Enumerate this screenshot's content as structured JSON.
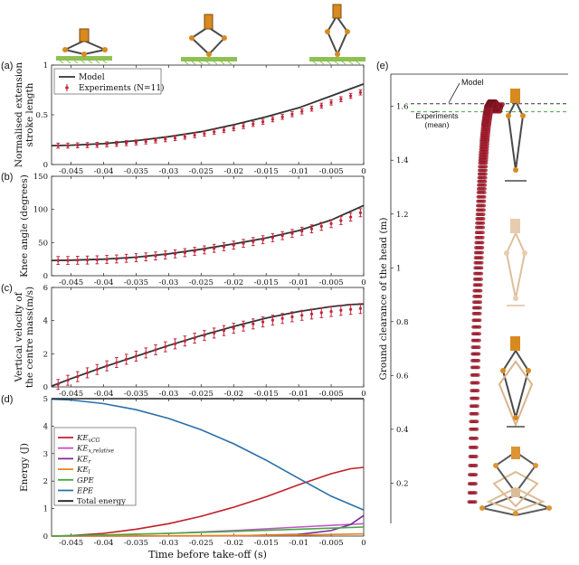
{
  "colors": {
    "model": "#333333",
    "experiment": "#c0263a",
    "ke_vcg": "#c0202a",
    "ke_x_relative": "#c655c6",
    "ke_r": "#7a2a9a",
    "ke_l": "#e8841a",
    "gpe": "#45a93f",
    "epe": "#2a6faa",
    "total": "#222222",
    "leg_body": "#4a4a4a",
    "leg_joint": "#d88a1f",
    "ground": "#8dc152",
    "ghost": "#d9b58a"
  },
  "chart_data": [
    {
      "id": "a",
      "type": "line",
      "panel_label": "(a)",
      "ylabel_lines": [
        "Normalised extension",
        "stroke length"
      ],
      "xlim": [
        -0.048,
        0
      ],
      "ylim": [
        0,
        1
      ],
      "xticks": [
        -0.045,
        -0.04,
        -0.035,
        -0.03,
        -0.025,
        -0.02,
        -0.015,
        -0.01,
        -0.005,
        0
      ],
      "xtick_labels": [
        "-0.045",
        "-0.04",
        "-0.035",
        "-0.03",
        "-0.025",
        "-0.02",
        "-0.015",
        "-0.01",
        "-0.005",
        "0"
      ],
      "yticks": [
        0,
        0.5,
        1
      ],
      "ytick_labels": [
        "0",
        "0.5",
        "1"
      ],
      "grid": false,
      "legend": {
        "placement": "top-left",
        "entries": [
          "Model",
          "Experiments (N=11)"
        ]
      },
      "series": [
        {
          "name": "Model",
          "style": "line",
          "x": [
            -0.048,
            -0.045,
            -0.04,
            -0.035,
            -0.03,
            -0.025,
            -0.02,
            -0.015,
            -0.01,
            -0.005,
            0
          ],
          "y": [
            0.19,
            0.195,
            0.21,
            0.24,
            0.28,
            0.33,
            0.4,
            0.48,
            0.57,
            0.69,
            0.81
          ]
        },
        {
          "name": "Experiments (N=11)",
          "style": "errorbar",
          "x": [
            -0.047,
            -0.0455,
            -0.044,
            -0.0425,
            -0.041,
            -0.0395,
            -0.038,
            -0.0365,
            -0.035,
            -0.0335,
            -0.032,
            -0.0305,
            -0.029,
            -0.0275,
            -0.026,
            -0.0245,
            -0.023,
            -0.0215,
            -0.02,
            -0.0185,
            -0.017,
            -0.0155,
            -0.014,
            -0.0125,
            -0.011,
            -0.0095,
            -0.008,
            -0.0065,
            -0.005,
            -0.0035,
            -0.002,
            -0.0005
          ],
          "y": [
            0.19,
            0.19,
            0.193,
            0.195,
            0.198,
            0.203,
            0.208,
            0.215,
            0.222,
            0.232,
            0.242,
            0.254,
            0.266,
            0.28,
            0.295,
            0.31,
            0.328,
            0.346,
            0.365,
            0.386,
            0.408,
            0.43,
            0.455,
            0.48,
            0.506,
            0.534,
            0.562,
            0.592,
            0.624,
            0.657,
            0.69,
            0.725
          ],
          "err": 0.025
        }
      ]
    },
    {
      "id": "b",
      "type": "line",
      "panel_label": "(b)",
      "ylabel_lines": [
        "Knee angle (degrees)"
      ],
      "xlim": [
        -0.048,
        0
      ],
      "ylim": [
        0,
        150
      ],
      "xticks": [
        -0.045,
        -0.04,
        -0.035,
        -0.03,
        -0.025,
        -0.02,
        -0.015,
        -0.01,
        -0.005,
        0
      ],
      "xtick_labels": [
        "-0.045",
        "-0.04",
        "-0.035",
        "-0.03",
        "-0.025",
        "-0.02",
        "-0.015",
        "-0.01",
        "-0.005",
        "0"
      ],
      "yticks": [
        0,
        50,
        100,
        150
      ],
      "ytick_labels": [
        "0",
        "50",
        "100",
        "150"
      ],
      "grid": false,
      "series": [
        {
          "name": "Model",
          "style": "line",
          "x": [
            -0.048,
            -0.045,
            -0.04,
            -0.035,
            -0.03,
            -0.025,
            -0.02,
            -0.015,
            -0.01,
            -0.005,
            0
          ],
          "y": [
            23,
            23.5,
            25,
            28,
            33,
            40,
            48,
            57,
            68,
            84,
            106
          ]
        },
        {
          "name": "Experiments",
          "style": "errorbar",
          "x": [
            -0.047,
            -0.0455,
            -0.044,
            -0.0425,
            -0.041,
            -0.0395,
            -0.038,
            -0.0365,
            -0.035,
            -0.0335,
            -0.032,
            -0.0305,
            -0.029,
            -0.0275,
            -0.026,
            -0.0245,
            -0.023,
            -0.0215,
            -0.02,
            -0.0185,
            -0.017,
            -0.0155,
            -0.014,
            -0.0125,
            -0.011,
            -0.0095,
            -0.008,
            -0.0065,
            -0.005,
            -0.0035,
            -0.002,
            -0.0005
          ],
          "y": [
            23,
            23,
            23.3,
            23.6,
            24,
            24.6,
            25.3,
            26.2,
            27.2,
            28.4,
            29.8,
            31.3,
            33,
            34.8,
            36.8,
            39,
            41.3,
            43.7,
            46.2,
            48.8,
            51.5,
            54.3,
            57.3,
            60.4,
            63.7,
            67.1,
            70.7,
            74.5,
            78.6,
            83.2,
            88.5,
            95
          ],
          "err": 6
        }
      ]
    },
    {
      "id": "c",
      "type": "line",
      "panel_label": "(c)",
      "ylabel_lines": [
        "Vertical velocity of",
        "the centre mass(m/s)"
      ],
      "xlim": [
        -0.048,
        0
      ],
      "ylim": [
        0,
        6
      ],
      "xticks": [
        -0.045,
        -0.04,
        -0.035,
        -0.03,
        -0.025,
        -0.02,
        -0.015,
        -0.01,
        -0.005,
        0
      ],
      "xtick_labels": [
        "-0.045",
        "-0.04",
        "-0.035",
        "-0.03",
        "-0.025",
        "-0.02",
        "-0.015",
        "-0.01",
        "-0.005",
        "0"
      ],
      "yticks": [
        0,
        2,
        4,
        6
      ],
      "ytick_labels": [
        "0",
        "2",
        "4",
        "6"
      ],
      "grid": false,
      "series": [
        {
          "name": "Model",
          "style": "line",
          "x": [
            -0.048,
            -0.045,
            -0.04,
            -0.035,
            -0.03,
            -0.025,
            -0.02,
            -0.015,
            -0.01,
            -0.005,
            -0.002,
            0
          ],
          "y": [
            0.05,
            0.5,
            1.2,
            1.85,
            2.5,
            3.1,
            3.65,
            4.15,
            4.55,
            4.85,
            4.97,
            5.0
          ]
        },
        {
          "name": "Experiments",
          "style": "errorbar",
          "x": [
            -0.047,
            -0.0455,
            -0.044,
            -0.0425,
            -0.041,
            -0.0395,
            -0.038,
            -0.0365,
            -0.035,
            -0.0335,
            -0.032,
            -0.0305,
            -0.029,
            -0.0275,
            -0.026,
            -0.0245,
            -0.023,
            -0.0215,
            -0.02,
            -0.0185,
            -0.017,
            -0.0155,
            -0.014,
            -0.0125,
            -0.011,
            -0.0095,
            -0.008,
            -0.0065,
            -0.005,
            -0.0035,
            -0.002,
            -0.0005
          ],
          "y": [
            0.15,
            0.4,
            0.62,
            0.85,
            1.05,
            1.27,
            1.47,
            1.67,
            1.86,
            2.05,
            2.24,
            2.42,
            2.6,
            2.77,
            2.94,
            3.1,
            3.25,
            3.4,
            3.54,
            3.67,
            3.8,
            3.92,
            4.03,
            4.13,
            4.23,
            4.32,
            4.4,
            4.48,
            4.55,
            4.62,
            4.68,
            4.73
          ],
          "err": 0.3
        }
      ]
    },
    {
      "id": "d",
      "type": "line",
      "panel_label": "(d)",
      "ylabel_lines": [
        "Energy (J)"
      ],
      "xlabel": "Time before take-off (s)",
      "xlim": [
        -0.048,
        0
      ],
      "ylim": [
        0,
        5
      ],
      "xticks": [
        -0.045,
        -0.04,
        -0.035,
        -0.03,
        -0.025,
        -0.02,
        -0.015,
        -0.01,
        -0.005,
        0
      ],
      "xtick_labels": [
        "-0.045",
        "-0.04",
        "-0.035",
        "-0.03",
        "-0.025",
        "-0.02",
        "-0.015",
        "-0.01",
        "-0.005",
        "0"
      ],
      "yticks": [
        0,
        1,
        2,
        3,
        4,
        5
      ],
      "ytick_labels": [
        "0",
        "1",
        "2",
        "3",
        "4",
        "5"
      ],
      "grid": false,
      "legend": {
        "placement": "center-left",
        "entries": [
          "KE_vCG",
          "KE_x,relative",
          "KE_r",
          "KE_l",
          "GPE",
          "EPE",
          "Total energy"
        ]
      },
      "series": [
        {
          "name": "KE_vCG",
          "color_key": "ke_vcg",
          "x": [
            -0.048,
            -0.045,
            -0.04,
            -0.035,
            -0.03,
            -0.025,
            -0.02,
            -0.015,
            -0.01,
            -0.005,
            -0.002,
            0
          ],
          "y": [
            0,
            0.02,
            0.1,
            0.25,
            0.45,
            0.72,
            1.05,
            1.43,
            1.87,
            2.27,
            2.45,
            2.5
          ]
        },
        {
          "name": "KE_x,relative",
          "color_key": "ke_x_relative",
          "x": [
            -0.048,
            -0.04,
            -0.03,
            -0.02,
            -0.01,
            0
          ],
          "y": [
            0,
            0.03,
            0.1,
            0.2,
            0.33,
            0.45
          ]
        },
        {
          "name": "KE_r",
          "color_key": "ke_r",
          "x": [
            -0.048,
            -0.02,
            -0.01,
            -0.005,
            -0.002,
            0
          ],
          "y": [
            0,
            0.01,
            0.06,
            0.2,
            0.42,
            0.75
          ]
        },
        {
          "name": "KE_l",
          "color_key": "ke_l",
          "x": [
            -0.048,
            -0.03,
            -0.02,
            -0.01,
            0
          ],
          "y": [
            0,
            0.01,
            0.02,
            0.04,
            0.08
          ]
        },
        {
          "name": "GPE",
          "color_key": "gpe",
          "x": [
            -0.048,
            -0.04,
            -0.03,
            -0.02,
            -0.01,
            0
          ],
          "y": [
            0,
            0.04,
            0.1,
            0.17,
            0.25,
            0.33
          ]
        },
        {
          "name": "EPE",
          "color_key": "epe",
          "x": [
            -0.048,
            -0.045,
            -0.04,
            -0.035,
            -0.03,
            -0.025,
            -0.02,
            -0.015,
            -0.01,
            -0.005,
            0
          ],
          "y": [
            4.98,
            4.95,
            4.82,
            4.6,
            4.28,
            3.87,
            3.36,
            2.76,
            2.1,
            1.45,
            0.95
          ]
        },
        {
          "name": "Total energy",
          "color_key": "total",
          "x": [
            -0.048,
            0
          ],
          "y": [
            5.0,
            5.0
          ]
        }
      ]
    },
    {
      "id": "e",
      "type": "line",
      "panel_label": "(e)",
      "ylabel_lines": [
        "Ground clearance of the head (m)"
      ],
      "ylim": [
        0.05,
        1.72
      ],
      "yticks": [
        0.2,
        0.4,
        0.6,
        0.8,
        1,
        1.2,
        1.4,
        1.6
      ],
      "ytick_labels": [
        "0.2",
        "0.4",
        "0.6",
        "0.8",
        "1",
        "1.2",
        "1.4",
        "1.6"
      ],
      "grid": false,
      "reference_lines": [
        {
          "label": "Model",
          "y": 1.61,
          "color_key": "model"
        },
        {
          "label_lines": [
            "Experiments",
            "(mean)"
          ],
          "y": 1.58,
          "color_key": "gpe"
        }
      ],
      "trajectory": {
        "name": "Experimental head trajectories",
        "style": "markers",
        "x": [
          0.0,
          0.1,
          0.2,
          0.3,
          0.4,
          0.5,
          0.6,
          0.7,
          0.8,
          0.9,
          1.0,
          1.1,
          1.2,
          1.3,
          1.4,
          1.5,
          1.6,
          1.7,
          1.8
        ],
        "y": [
          0.13,
          0.4,
          0.63,
          0.83,
          1.0,
          1.15,
          1.28,
          1.39,
          1.47,
          1.53,
          1.57,
          1.6,
          1.61,
          1.62,
          1.615,
          1.6,
          1.58,
          1.6,
          1.61
        ],
        "spread": 6
      }
    }
  ]
}
